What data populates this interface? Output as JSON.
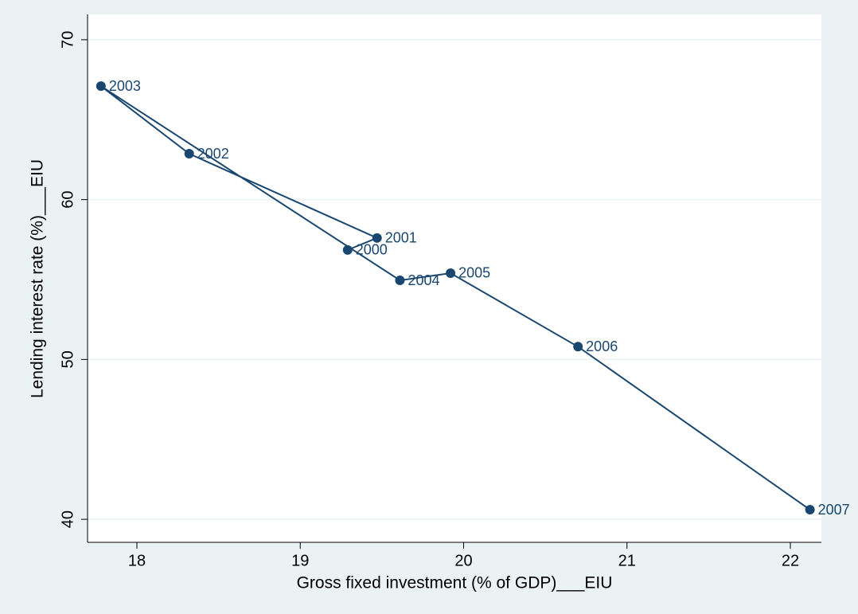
{
  "chart_data": {
    "type": "line",
    "xlabel": "Gross fixed investment (% of GDP)___EIU",
    "ylabel": "Lending interest rate (%)___EIU",
    "x": [
      19.29,
      19.47,
      18.32,
      17.78,
      19.61,
      19.92,
      20.7,
      22.12
    ],
    "values": [
      56.85,
      57.6,
      62.87,
      67.1,
      54.95,
      55.4,
      50.8,
      40.6
    ],
    "point_labels": [
      "2000",
      "2001",
      "2002",
      "2003",
      "2004",
      "2005",
      "2006",
      "2007"
    ],
    "color": "#1a476f",
    "xlim": [
      17.698,
      22.19
    ],
    "xticks": [
      18,
      19,
      20,
      21,
      22
    ],
    "ylim": [
      38.56,
      71.59
    ],
    "yticks": [
      40,
      50,
      60,
      70
    ],
    "grid": true
  }
}
